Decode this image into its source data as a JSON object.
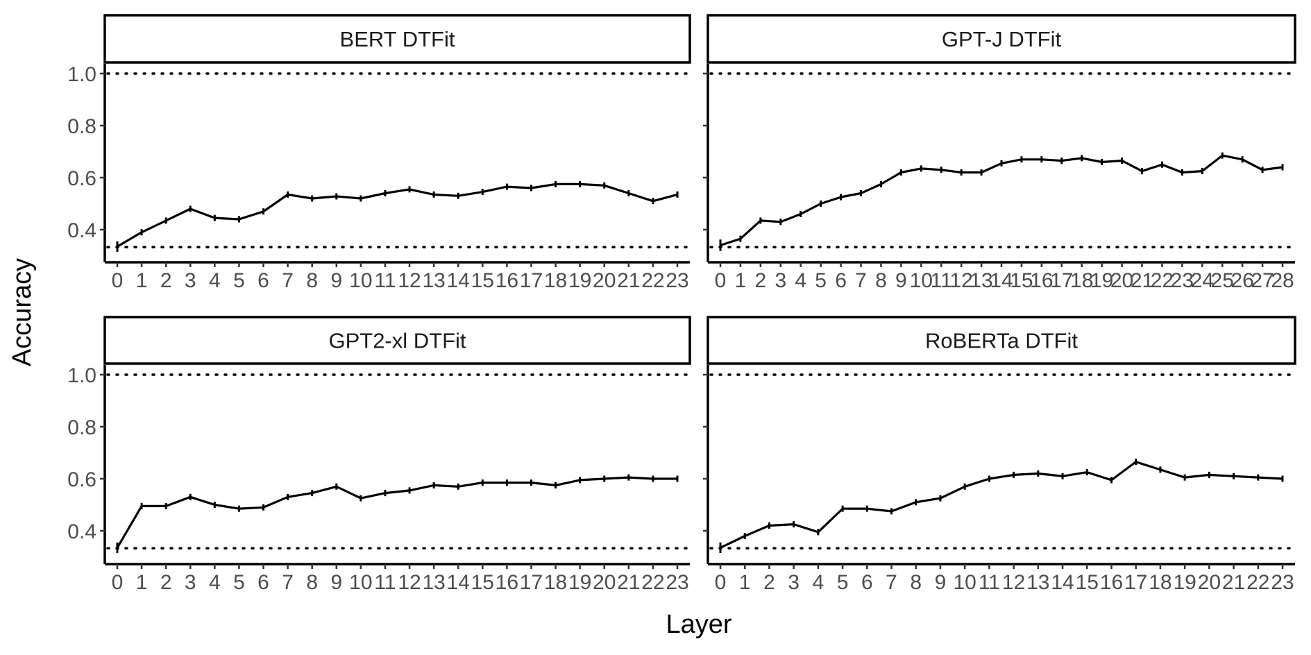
{
  "figure": {
    "xlabel": "Layer",
    "ylabel": "Accuracy"
  },
  "chart_data": [
    {
      "type": "line",
      "title": "BERT DTFit",
      "xlabel": "Layer",
      "ylabel": "Accuracy",
      "ylim": [
        0.3,
        1.03
      ],
      "yticks": [
        0.4,
        0.6,
        0.8,
        1.0
      ],
      "ytick_labels": [
        "0.4",
        "0.6",
        "0.8",
        "1.0"
      ],
      "reference_lines": [
        1.0,
        0.333
      ],
      "x": [
        "0",
        "1",
        "2",
        "3",
        "4",
        "5",
        "6",
        "7",
        "8",
        "9",
        "10",
        "11",
        "12",
        "13",
        "14",
        "15",
        "16",
        "17",
        "18",
        "19",
        "20",
        "21",
        "22",
        "23"
      ],
      "values": [
        0.335,
        0.39,
        0.435,
        0.48,
        0.445,
        0.44,
        0.47,
        0.535,
        0.52,
        0.528,
        0.52,
        0.54,
        0.555,
        0.535,
        0.53,
        0.545,
        0.565,
        0.56,
        0.575,
        0.575,
        0.57,
        0.54,
        0.51,
        0.535
      ],
      "errors": [
        0.02,
        0.012,
        0.012,
        0.012,
        0.012,
        0.012,
        0.012,
        0.012,
        0.012,
        0.012,
        0.012,
        0.012,
        0.012,
        0.012,
        0.012,
        0.012,
        0.012,
        0.012,
        0.012,
        0.012,
        0.012,
        0.012,
        0.012,
        0.012
      ],
      "grid": false
    },
    {
      "type": "line",
      "title": "GPT-J DTFit",
      "xlabel": "Layer",
      "ylabel": "Accuracy",
      "ylim": [
        0.3,
        1.03
      ],
      "yticks": [
        0.4,
        0.6,
        0.8,
        1.0
      ],
      "ytick_labels": [
        "0.4",
        "0.6",
        "0.8",
        "1.0"
      ],
      "reference_lines": [
        1.0,
        0.333
      ],
      "x": [
        "0",
        "1",
        "2",
        "3",
        "4",
        "5",
        "6",
        "7",
        "8",
        "9",
        "10",
        "11",
        "12",
        "13",
        "14",
        "15",
        "16",
        "17",
        "18",
        "19",
        "20",
        "21",
        "22",
        "23",
        "24",
        "25",
        "26",
        "27",
        "28"
      ],
      "values": [
        0.34,
        0.365,
        0.435,
        0.43,
        0.46,
        0.5,
        0.525,
        0.54,
        0.575,
        0.62,
        0.635,
        0.63,
        0.62,
        0.62,
        0.655,
        0.67,
        0.67,
        0.665,
        0.675,
        0.66,
        0.665,
        0.625,
        0.65,
        0.62,
        0.625,
        0.685,
        0.67,
        0.63,
        0.64
      ],
      "errors": [
        0.022,
        0.012,
        0.012,
        0.012,
        0.012,
        0.012,
        0.012,
        0.012,
        0.012,
        0.012,
        0.012,
        0.012,
        0.012,
        0.012,
        0.012,
        0.012,
        0.012,
        0.012,
        0.012,
        0.012,
        0.012,
        0.012,
        0.012,
        0.012,
        0.012,
        0.012,
        0.012,
        0.012,
        0.012
      ],
      "grid": false
    },
    {
      "type": "line",
      "title": "GPT2-xl DTFit",
      "xlabel": "Layer",
      "ylabel": "Accuracy",
      "ylim": [
        0.3,
        1.03
      ],
      "yticks": [
        0.4,
        0.6,
        0.8,
        1.0
      ],
      "ytick_labels": [
        "0.4",
        "0.6",
        "0.8",
        "1.0"
      ],
      "reference_lines": [
        1.0,
        0.333
      ],
      "x": [
        "0",
        "1",
        "2",
        "3",
        "4",
        "5",
        "6",
        "7",
        "8",
        "9",
        "10",
        "11",
        "12",
        "13",
        "14",
        "15",
        "16",
        "17",
        "18",
        "19",
        "20",
        "21",
        "22",
        "23"
      ],
      "values": [
        0.335,
        0.495,
        0.495,
        0.53,
        0.5,
        0.485,
        0.49,
        0.53,
        0.545,
        0.57,
        0.525,
        0.545,
        0.555,
        0.575,
        0.57,
        0.585,
        0.585,
        0.585,
        0.575,
        0.595,
        0.6,
        0.605,
        0.6,
        0.6
      ],
      "errors": [
        0.02,
        0.012,
        0.012,
        0.012,
        0.012,
        0.012,
        0.012,
        0.012,
        0.012,
        0.012,
        0.012,
        0.012,
        0.012,
        0.012,
        0.012,
        0.012,
        0.012,
        0.012,
        0.012,
        0.012,
        0.012,
        0.012,
        0.012,
        0.012
      ],
      "grid": false
    },
    {
      "type": "line",
      "title": "RoBERTa DTFit",
      "xlabel": "Layer",
      "ylabel": "Accuracy",
      "ylim": [
        0.3,
        1.03
      ],
      "yticks": [
        0.4,
        0.6,
        0.8,
        1.0
      ],
      "ytick_labels": [
        "0.4",
        "0.6",
        "0.8",
        "1.0"
      ],
      "reference_lines": [
        1.0,
        0.333
      ],
      "x": [
        "0",
        "1",
        "2",
        "3",
        "4",
        "5",
        "6",
        "7",
        "8",
        "9",
        "10",
        "11",
        "12",
        "13",
        "14",
        "15",
        "16",
        "17",
        "18",
        "19",
        "20",
        "21",
        "22",
        "23"
      ],
      "values": [
        0.335,
        0.38,
        0.42,
        0.425,
        0.395,
        0.485,
        0.485,
        0.475,
        0.51,
        0.525,
        0.57,
        0.6,
        0.615,
        0.62,
        0.61,
        0.625,
        0.595,
        0.665,
        0.635,
        0.605,
        0.615,
        0.61,
        0.605,
        0.6
      ],
      "errors": [
        0.02,
        0.012,
        0.012,
        0.012,
        0.012,
        0.012,
        0.012,
        0.012,
        0.012,
        0.012,
        0.012,
        0.012,
        0.012,
        0.012,
        0.012,
        0.012,
        0.012,
        0.012,
        0.012,
        0.012,
        0.012,
        0.012,
        0.012,
        0.012
      ],
      "grid": false
    }
  ]
}
